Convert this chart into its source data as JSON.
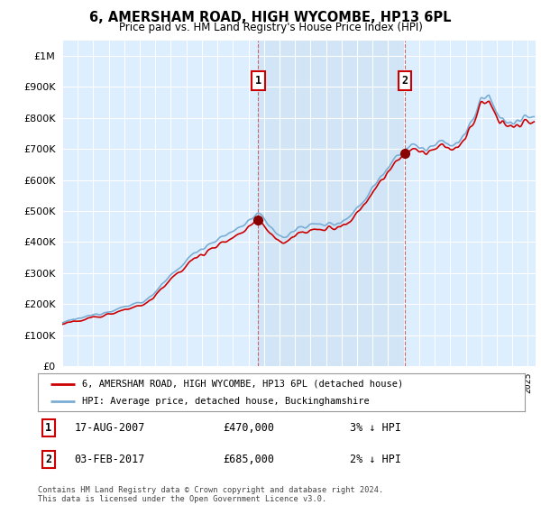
{
  "title": "6, AMERSHAM ROAD, HIGH WYCOMBE, HP13 6PL",
  "subtitle": "Price paid vs. HM Land Registry's House Price Index (HPI)",
  "ytick_values": [
    0,
    100000,
    200000,
    300000,
    400000,
    500000,
    600000,
    700000,
    800000,
    900000,
    1000000
  ],
  "ylim": [
    0,
    1050000
  ],
  "sale1_date": "17-AUG-2007",
  "sale1_price": 470000,
  "sale1_pct": "3% ↓ HPI",
  "sale2_date": "03-FEB-2017",
  "sale2_price": 685000,
  "sale2_pct": "2% ↓ HPI",
  "legend_house": "6, AMERSHAM ROAD, HIGH WYCOMBE, HP13 6PL (detached house)",
  "legend_hpi": "HPI: Average price, detached house, Buckinghamshire",
  "footer": "Contains HM Land Registry data © Crown copyright and database right 2024.\nThis data is licensed under the Open Government Licence v3.0.",
  "line_house_color": "#cc0000",
  "line_hpi_color": "#7aadd4",
  "shade_color": "#ddeeff",
  "plot_bg_color": "#ddeeff",
  "grid_color": "#ffffff",
  "background_color": "#ffffff",
  "sale1_x": 2007.63,
  "sale2_x": 2017.09,
  "xstart": 1995.0,
  "xend": 2025.5
}
